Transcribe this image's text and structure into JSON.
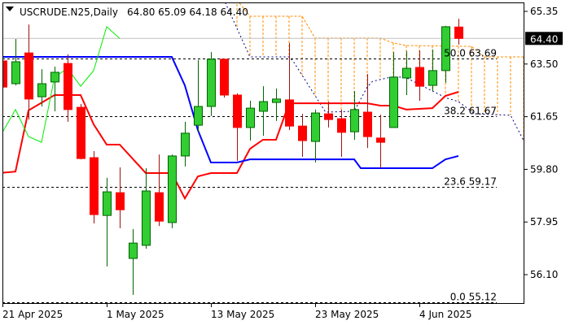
{
  "header": {
    "menu_icon": "triangle-down-icon",
    "symbol_timeframe": "USCRUDE.N25,Daily",
    "ohlc_readout": "64.80 65.09 64.18 64.40"
  },
  "colors": {
    "bull_body": "#32cd32",
    "bull_edge": "#006400",
    "bear_body": "#ff0000",
    "bear_wick": "#a01010",
    "kijun": "#ff0000",
    "tenkan_blue": "#0000ff",
    "chikou": "#00ee00",
    "span_a": "#ff8c00",
    "span_b": "#000080",
    "price_line": "#c0c0c0",
    "fib": "#000000"
  },
  "chart_data": {
    "type": "candlestick",
    "title": "USCRUDE.N25,Daily",
    "ylim": [
      54.9,
      65.7
    ],
    "y_ticks": [
      "65.35",
      "63.50",
      "61.65",
      "59.80",
      "57.95",
      "56.10"
    ],
    "current_price": "64.40",
    "x_ticks": [
      {
        "label": "21 Apr 2025",
        "index": 0
      },
      {
        "label": "1 May 2025",
        "index": 8
      },
      {
        "label": "13 May 2025",
        "index": 16
      },
      {
        "label": "23 May 2025",
        "index": 24
      },
      {
        "label": "4 Jun 2025",
        "index": 32
      }
    ],
    "candles": [
      {
        "o": 63.61,
        "h": 63.81,
        "l": 61.81,
        "c": 62.69
      },
      {
        "o": 62.81,
        "h": 64.38,
        "l": 62.75,
        "c": 63.58
      },
      {
        "o": 63.89,
        "h": 64.89,
        "l": 61.55,
        "c": 62.27
      },
      {
        "o": 62.35,
        "h": 63.32,
        "l": 62.01,
        "c": 62.81
      },
      {
        "o": 62.87,
        "h": 63.41,
        "l": 61.84,
        "c": 63.21
      },
      {
        "o": 63.52,
        "h": 63.84,
        "l": 61.47,
        "c": 61.9
      },
      {
        "o": 61.98,
        "h": 62.1,
        "l": 60.15,
        "c": 60.18
      },
      {
        "o": 60.21,
        "h": 60.44,
        "l": 57.9,
        "c": 58.21
      },
      {
        "o": 58.18,
        "h": 59.5,
        "l": 56.39,
        "c": 59.01
      },
      {
        "o": 58.98,
        "h": 59.87,
        "l": 57.73,
        "c": 58.38
      },
      {
        "o": 56.67,
        "h": 57.7,
        "l": 55.39,
        "c": 57.21
      },
      {
        "o": 57.13,
        "h": 59.84,
        "l": 57.01,
        "c": 59.04
      },
      {
        "o": 58.98,
        "h": 60.32,
        "l": 57.81,
        "c": 57.98
      },
      {
        "o": 57.93,
        "h": 60.32,
        "l": 57.73,
        "c": 60.27
      },
      {
        "o": 60.27,
        "h": 61.47,
        "l": 59.9,
        "c": 61.07
      },
      {
        "o": 61.35,
        "h": 63.64,
        "l": 61.1,
        "c": 62.01
      },
      {
        "o": 62.01,
        "h": 63.92,
        "l": 61.67,
        "c": 63.67
      },
      {
        "o": 63.67,
        "h": 63.69,
        "l": 62.32,
        "c": 62.41
      },
      {
        "o": 62.41,
        "h": 62.47,
        "l": 60.1,
        "c": 61.27
      },
      {
        "o": 61.27,
        "h": 62.21,
        "l": 60.81,
        "c": 61.95
      },
      {
        "o": 61.84,
        "h": 62.72,
        "l": 60.98,
        "c": 62.18
      },
      {
        "o": 62.15,
        "h": 62.64,
        "l": 61.5,
        "c": 62.27
      },
      {
        "o": 62.24,
        "h": 64.24,
        "l": 61.18,
        "c": 61.32
      },
      {
        "o": 61.32,
        "h": 61.75,
        "l": 60.24,
        "c": 60.81
      },
      {
        "o": 60.78,
        "h": 61.9,
        "l": 60.04,
        "c": 61.78
      },
      {
        "o": 61.75,
        "h": 62.18,
        "l": 61.27,
        "c": 61.55
      },
      {
        "o": 61.58,
        "h": 61.9,
        "l": 60.24,
        "c": 61.1
      },
      {
        "o": 61.12,
        "h": 62.55,
        "l": 60.84,
        "c": 61.9
      },
      {
        "o": 61.81,
        "h": 63.15,
        "l": 60.55,
        "c": 60.95
      },
      {
        "o": 60.9,
        "h": 61.72,
        "l": 59.84,
        "c": 60.75
      },
      {
        "o": 61.27,
        "h": 63.92,
        "l": 61.27,
        "c": 63.04
      },
      {
        "o": 63.01,
        "h": 63.95,
        "l": 62.41,
        "c": 63.35
      },
      {
        "o": 63.38,
        "h": 63.98,
        "l": 62.21,
        "c": 62.72
      },
      {
        "o": 62.75,
        "h": 64.01,
        "l": 62.55,
        "c": 63.27
      },
      {
        "o": 63.27,
        "h": 64.84,
        "l": 62.84,
        "c": 64.81
      },
      {
        "o": 64.8,
        "h": 65.09,
        "l": 64.18,
        "c": 64.4
      }
    ],
    "indicators": {
      "red_line": [
        [
          0,
          59.68
        ],
        [
          1,
          59.72
        ],
        [
          2,
          61.87
        ],
        [
          4,
          62.41
        ],
        [
          6,
          62.41
        ],
        [
          7,
          61.38
        ],
        [
          8,
          60.67
        ],
        [
          9,
          60.67
        ],
        [
          11,
          59.67
        ],
        [
          13,
          59.67
        ],
        [
          14,
          58.78
        ],
        [
          15,
          59.55
        ],
        [
          16,
          59.67
        ],
        [
          18,
          59.67
        ],
        [
          19,
          60.52
        ],
        [
          20,
          60.84
        ],
        [
          21,
          60.84
        ],
        [
          22,
          62.12
        ],
        [
          28,
          62.12
        ],
        [
          29,
          62.04
        ],
        [
          30,
          62.04
        ],
        [
          31,
          61.9
        ],
        [
          33,
          61.95
        ],
        [
          34,
          62.38
        ],
        [
          35,
          62.52
        ]
      ],
      "blue_line": [
        [
          0,
          63.75
        ],
        [
          13,
          63.75
        ],
        [
          14,
          62.75
        ],
        [
          15,
          61.18
        ],
        [
          16,
          60.04
        ],
        [
          18,
          60.04
        ],
        [
          19,
          60.15
        ],
        [
          27,
          60.15
        ],
        [
          27.5,
          59.84
        ],
        [
          33,
          59.84
        ],
        [
          34,
          60.15
        ],
        [
          35,
          60.27
        ]
      ],
      "green_line": [
        [
          0,
          61.1
        ],
        [
          1,
          61.9
        ],
        [
          2,
          60.95
        ],
        [
          3,
          60.75
        ],
        [
          4,
          63.04
        ],
        [
          5,
          63.35
        ],
        [
          6,
          62.72
        ],
        [
          7,
          63.27
        ],
        [
          8,
          64.81
        ],
        [
          9,
          64.4
        ]
      ],
      "span_a": [
        [
          18,
          65.75
        ],
        [
          19,
          65.18
        ],
        [
          23,
          65.18
        ],
        [
          24,
          64.41
        ],
        [
          29,
          64.41
        ],
        [
          30,
          64.24
        ],
        [
          31,
          64.15
        ],
        [
          36,
          64.12
        ],
        [
          37,
          63.75
        ],
        [
          40,
          63.75
        ]
      ],
      "span_b": [
        [
          17.1,
          65.66
        ],
        [
          19,
          63.75
        ],
        [
          22,
          63.75
        ],
        [
          22.3,
          63.61
        ],
        [
          24.8,
          61.81
        ],
        [
          27,
          61.84
        ],
        [
          28,
          62.69
        ],
        [
          28.4,
          62.89
        ],
        [
          29.8,
          63.04
        ],
        [
          30.9,
          63.04
        ],
        [
          34,
          62.32
        ],
        [
          35,
          62.18
        ],
        [
          36.25,
          61.75
        ],
        [
          39,
          61.7
        ],
        [
          40,
          60.81
        ]
      ]
    },
    "fibonacci": [
      {
        "label": "50.0 63.69",
        "price": 63.69
      },
      {
        "label": "38.2 61.67",
        "price": 61.67
      },
      {
        "label": "23.6 59.17",
        "price": 59.17
      },
      {
        "label": "0.0 55.12",
        "price": 55.12
      }
    ]
  }
}
